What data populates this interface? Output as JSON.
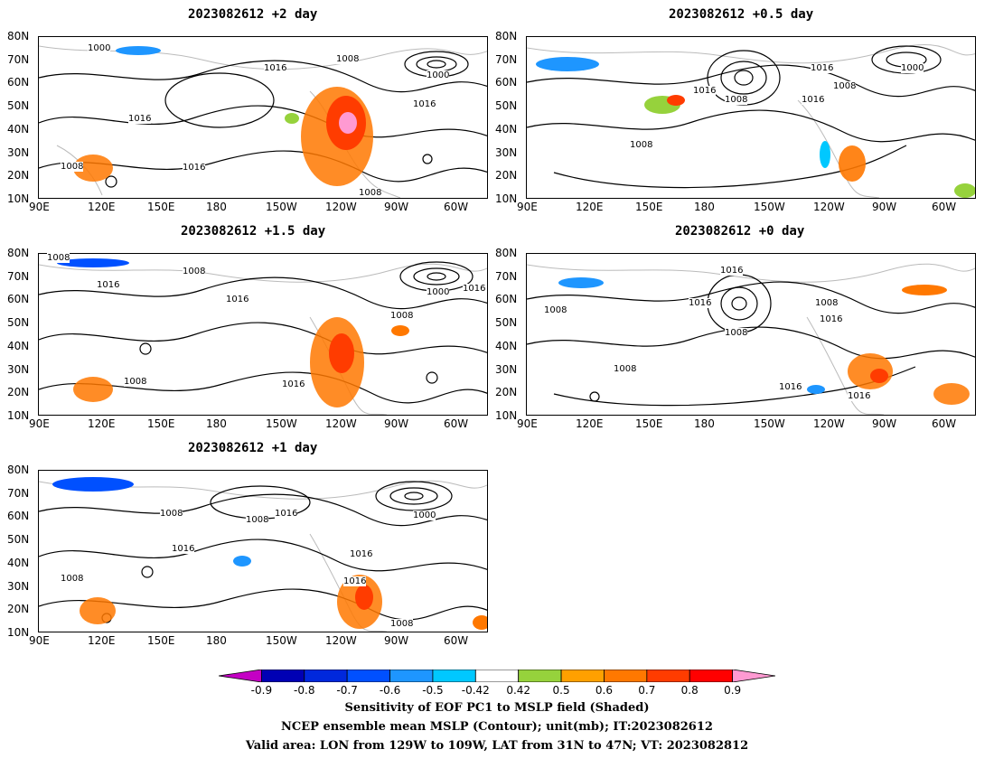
{
  "panels": [
    {
      "title": "2023082612 +2 day"
    },
    {
      "title": "2023082612 +0.5 day"
    },
    {
      "title": "2023082612 +1.5 day"
    },
    {
      "title": "2023082612 +0 day"
    },
    {
      "title": "2023082612 +1 day"
    }
  ],
  "lat_labels": [
    "80N",
    "70N",
    "60N",
    "50N",
    "40N",
    "30N",
    "20N",
    "10N"
  ],
  "lon_labels": [
    "90E",
    "120E",
    "150E",
    "180",
    "150W",
    "120W",
    "90W",
    "60W"
  ],
  "contour_labels": [
    "1000",
    "1008",
    "1016"
  ],
  "colorbar": {
    "labels": [
      "-0.9",
      "-0.8",
      "-0.7",
      "-0.6",
      "-0.5",
      "-0.42",
      "0.42",
      "0.5",
      "0.6",
      "0.7",
      "0.8",
      "0.9"
    ],
    "colors": [
      "#c400c4",
      "#0000b4",
      "#0028dc",
      "#0050ff",
      "#1e96ff",
      "#00c8ff",
      "#ffffff",
      "#96d23c",
      "#ffa000",
      "#ff7800",
      "#ff3c00",
      "#ff0000",
      "#ff9ad2"
    ]
  },
  "caption": {
    "line1": "Sensitivity of EOF PC1 to MSLP field (Shaded)",
    "line2": "NCEP ensemble mean MSLP (Contour); unit(mb); IT:2023082612",
    "line3": "Valid area: LON from 129W to 109W, LAT from 31N to 47N; VT: 2023082812"
  }
}
